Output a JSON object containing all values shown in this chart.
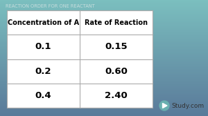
{
  "title": "REACTION ORDER FOR ONE REACTANT",
  "title_color": "#c8dede",
  "bg_color_top": "#7bbfbf",
  "bg_color_bottom": "#5a7a9a",
  "table_bg": "#f5f5f5",
  "header_row": [
    "Concentration of A",
    "Rate of Reaction"
  ],
  "data_rows": [
    [
      "0.1",
      "0.15"
    ],
    [
      "0.2",
      "0.60"
    ],
    [
      "0.4",
      "2.40"
    ]
  ],
  "header_fontsize": 7.0,
  "data_fontsize": 9.5,
  "header_fontweight": "bold",
  "data_fontweight": "bold",
  "watermark": "Study.com",
  "border_color": "#aaaaaa",
  "line_color": "#aaaaaa"
}
